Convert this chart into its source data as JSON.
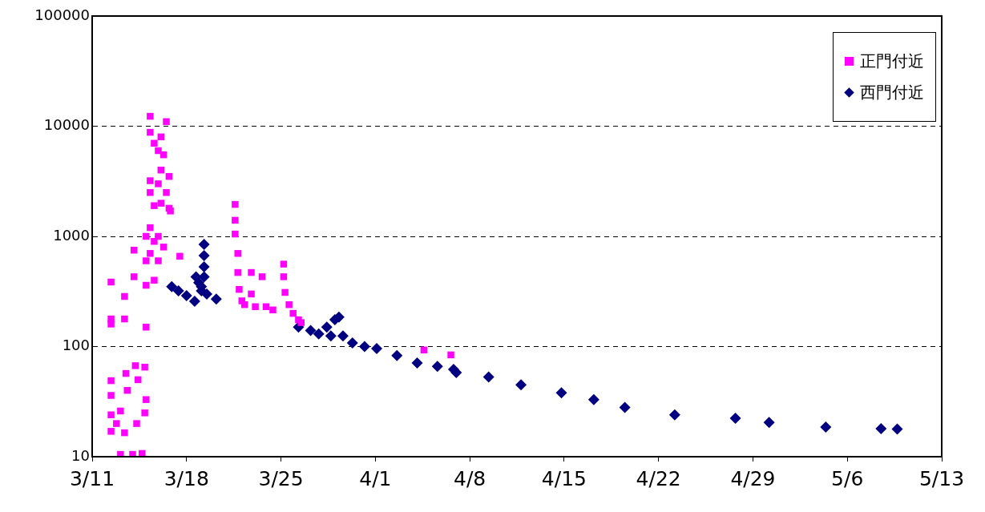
{
  "chart_data": {
    "type": "scatter",
    "log": "y",
    "grid": "y",
    "legend": "top right",
    "xlim": [
      "--03-11",
      "--05-13"
    ],
    "xticks": [
      {
        "value": "--03-11",
        "label": "3/11"
      },
      {
        "value": "--03-18",
        "label": "3/18"
      },
      {
        "value": "--03-25",
        "label": "3/25"
      },
      {
        "value": "--04-01",
        "label": "4/1"
      },
      {
        "value": "--04-08",
        "label": "4/8"
      },
      {
        "value": "--04-15",
        "label": "4/15"
      },
      {
        "value": "--04-22",
        "label": "4/22"
      },
      {
        "value": "--04-29",
        "label": "4/29"
      },
      {
        "value": "--05-06",
        "label": "5/6"
      },
      {
        "value": "--05-13",
        "label": "5/13"
      }
    ],
    "ylim": [
      10,
      100000
    ],
    "yticks": [
      10,
      100,
      1000,
      10000,
      100000
    ],
    "series": [
      {
        "name": "正門付近",
        "color": "#ff00ff",
        "marker": "square",
        "x": [
          "--03-12T09:36",
          "--03-12T09:36",
          "--03-12T09:36",
          "--03-12T09:36",
          "--03-12T09:36",
          "--03-12T09:36",
          "--03-12T09:36",
          "--03-12T19:12",
          "--03-13T02:24",
          "--03-13T02:24",
          "--03-13T09:36",
          "--03-13T09:36",
          "--03-13T09:36",
          "--03-13T12:00",
          "--03-13T14:24",
          "--03-14T00:00",
          "--03-14T02:24",
          "--03-14T02:24",
          "--03-14T04:48",
          "--03-14T07:12",
          "--03-14T09:36",
          "--03-14T16:48",
          "--03-14T21:36",
          "--03-14T21:36",
          "--03-15T00:00",
          "--03-15T00:00",
          "--03-15T00:00",
          "--03-15T00:00",
          "--03-15T00:00",
          "--03-15T07:12",
          "--03-15T07:12",
          "--03-15T07:12",
          "--03-15T07:12",
          "--03-15T07:12",
          "--03-15T07:12",
          "--03-15T14:24",
          "--03-15T14:24",
          "--03-15T14:24",
          "--03-15T14:24",
          "--03-15T21:36",
          "--03-15T21:36",
          "--03-15T21:36",
          "--03-15T21:36",
          "--03-16T02:24",
          "--03-16T02:24",
          "--03-16T02:24",
          "--03-16T07:12",
          "--03-16T07:12",
          "--03-16T12:00",
          "--03-16T12:00",
          "--03-16T16:48",
          "--03-16T16:48",
          "--03-16T19:12",
          "--03-17T12:00",
          "--03-21T14:24",
          "--03-21T14:24",
          "--03-21T14:24",
          "--03-21T19:12",
          "--03-21T19:12",
          "--03-21T21:36",
          "--03-22T02:24",
          "--03-22T07:12",
          "--03-22T19:12",
          "--03-22T19:12",
          "--03-23T02:24",
          "--03-23T14:24",
          "--03-23T21:36",
          "--03-24T09:36",
          "--03-25T04:48",
          "--03-25T04:48",
          "--03-25T07:12",
          "--03-25T14:24",
          "--03-25T21:36",
          "--03-26T07:12",
          "--03-26T12:00",
          "--04-04T14:24",
          "--04-06T14:24"
        ],
        "values": [
          385,
          178,
          160,
          49,
          36,
          24,
          17,
          20,
          26,
          10.5,
          285,
          178,
          16.5,
          57,
          40,
          10.5,
          750,
          430,
          67,
          20,
          50,
          10.7,
          25,
          65,
          150,
          360,
          600,
          1000,
          33,
          3200,
          12300,
          8800,
          2500,
          1200,
          700,
          400,
          900,
          1900,
          7000,
          6000,
          3000,
          1000,
          600,
          8000,
          4000,
          2000,
          5500,
          800,
          11000,
          2500,
          1800,
          3500,
          1700,
          660,
          1950,
          1400,
          1050,
          700,
          470,
          330,
          260,
          240,
          470,
          300,
          230,
          430,
          230,
          215,
          560,
          430,
          310,
          240,
          200,
          175,
          165,
          93,
          84
        ]
      },
      {
        "name": "西門付近",
        "color": "#000080",
        "marker": "diamond",
        "x": [
          "--03-16T21:36",
          "--03-17T09:36",
          "--03-18T00:00",
          "--03-18T14:24",
          "--03-18T16:48",
          "--03-18T21:36",
          "--03-19T02:24",
          "--03-19T02:24",
          "--03-19T07:12",
          "--03-19T07:12",
          "--03-19T07:12",
          "--03-19T07:12",
          "--03-19T12:00",
          "--03-20T04:48",
          "--03-26T07:12",
          "--03-27T04:48",
          "--03-27T19:12",
          "--03-28T09:36",
          "--03-28T16:48",
          "--03-29T00:00",
          "--03-29T07:12",
          "--03-29T14:24",
          "--03-30T07:12",
          "--03-31T04:48",
          "--04-01T02:24",
          "--04-02T14:24",
          "--04-04T02:24",
          "--04-05T14:24",
          "--04-06T19:12",
          "--04-07T00:00",
          "--04-09T09:36",
          "--04-11T19:12",
          "--04-14T19:12",
          "--04-17T04:48",
          "--04-19T12:00",
          "--04-23T04:48",
          "--04-27T16:48",
          "--04-30T04:48",
          "--05-04T09:36",
          "--05-08T12:00",
          "--05-09T16:48"
        ],
        "values": [
          350,
          320,
          290,
          258,
          430,
          380,
          350,
          320,
          845,
          670,
          530,
          430,
          300,
          270,
          150,
          140,
          130,
          150,
          125,
          175,
          185,
          125,
          108,
          100,
          96,
          83,
          71,
          66,
          62,
          58,
          53,
          45,
          38,
          33,
          28,
          24,
          22.3,
          20.5,
          18.6,
          18,
          17.8
        ]
      }
    ]
  }
}
